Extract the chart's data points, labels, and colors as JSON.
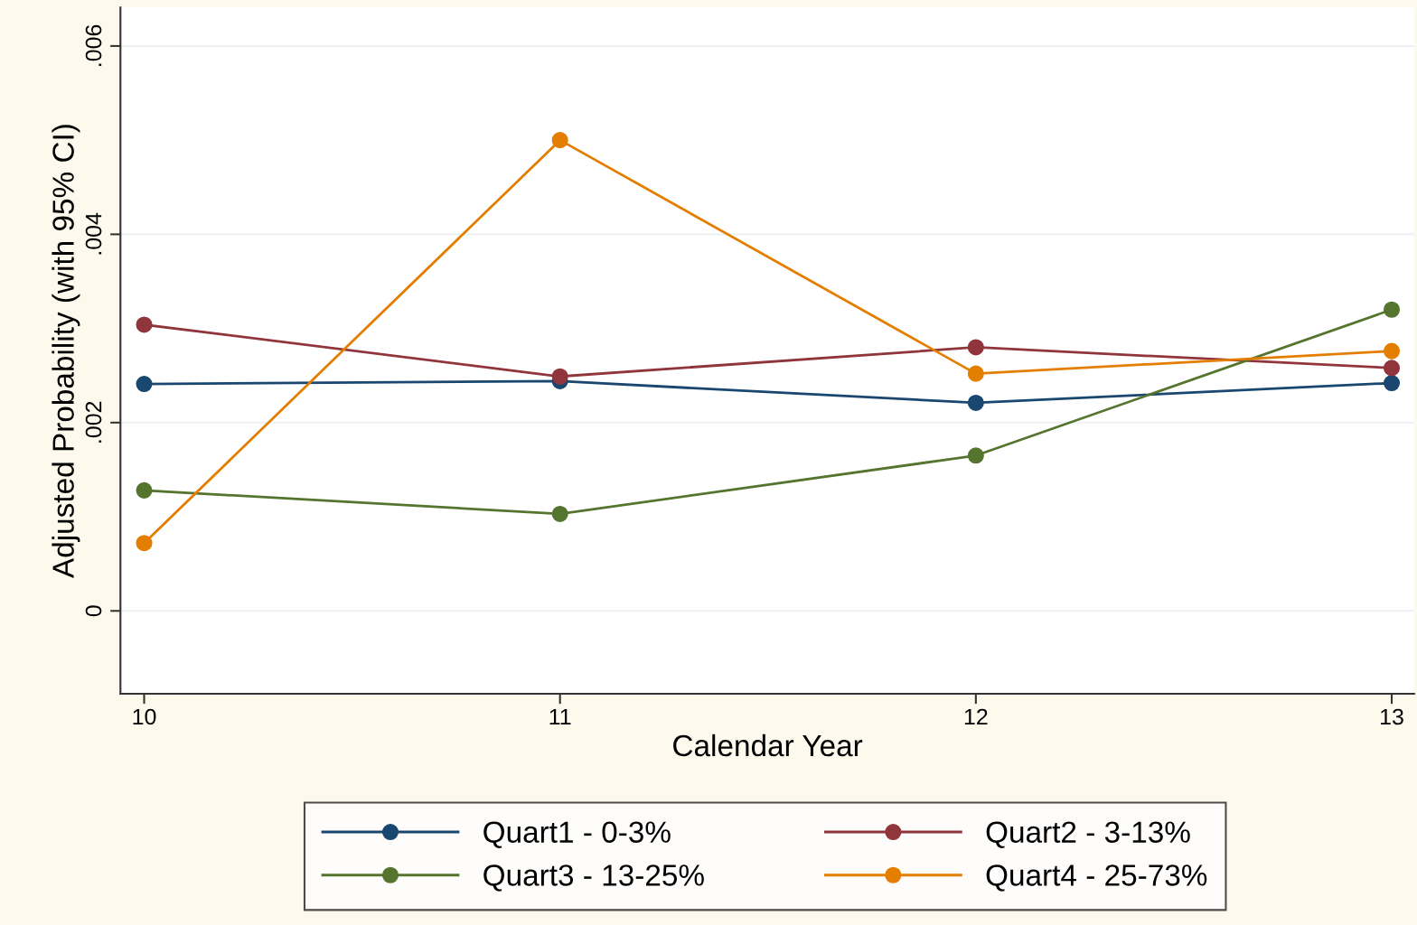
{
  "chart_data": {
    "type": "line",
    "xlabel": "Calendar Year",
    "ylabel": "Adjusted Probability (with 95% CI)",
    "x": [
      10,
      11,
      12,
      13
    ],
    "xlim": [
      9.943,
      13.054
    ],
    "xticks": [
      10,
      11,
      12,
      13
    ],
    "ylim": [
      -0.00088,
      0.00641
    ],
    "yticks": [
      0,
      {
        "value": 0.002,
        "label": ".002"
      },
      {
        "value": 0.004,
        "label": ".004"
      },
      {
        "value": 0.006,
        "label": ".006"
      }
    ],
    "grid": "y",
    "legend": "bottom",
    "marker": "circle",
    "line_style": "solid",
    "series": [
      {
        "name": "Quart1 - 0-3%",
        "color": "#1a476f",
        "values": [
          0.00241,
          0.00244,
          0.00221,
          0.00242
        ]
      },
      {
        "name": "Quart2 - 3-13%",
        "color": "#90353b",
        "values": [
          0.00304,
          0.00249,
          0.0028,
          0.00258
        ]
      },
      {
        "name": "Quart3 - 13-25%",
        "color": "#55752f",
        "values": [
          0.00128,
          0.00103,
          0.00165,
          0.0032
        ]
      },
      {
        "name": "Quart4 - 25-73%",
        "color": "#e37e00",
        "values": [
          0.00072,
          0.005,
          0.00252,
          0.00276
        ]
      }
    ]
  }
}
